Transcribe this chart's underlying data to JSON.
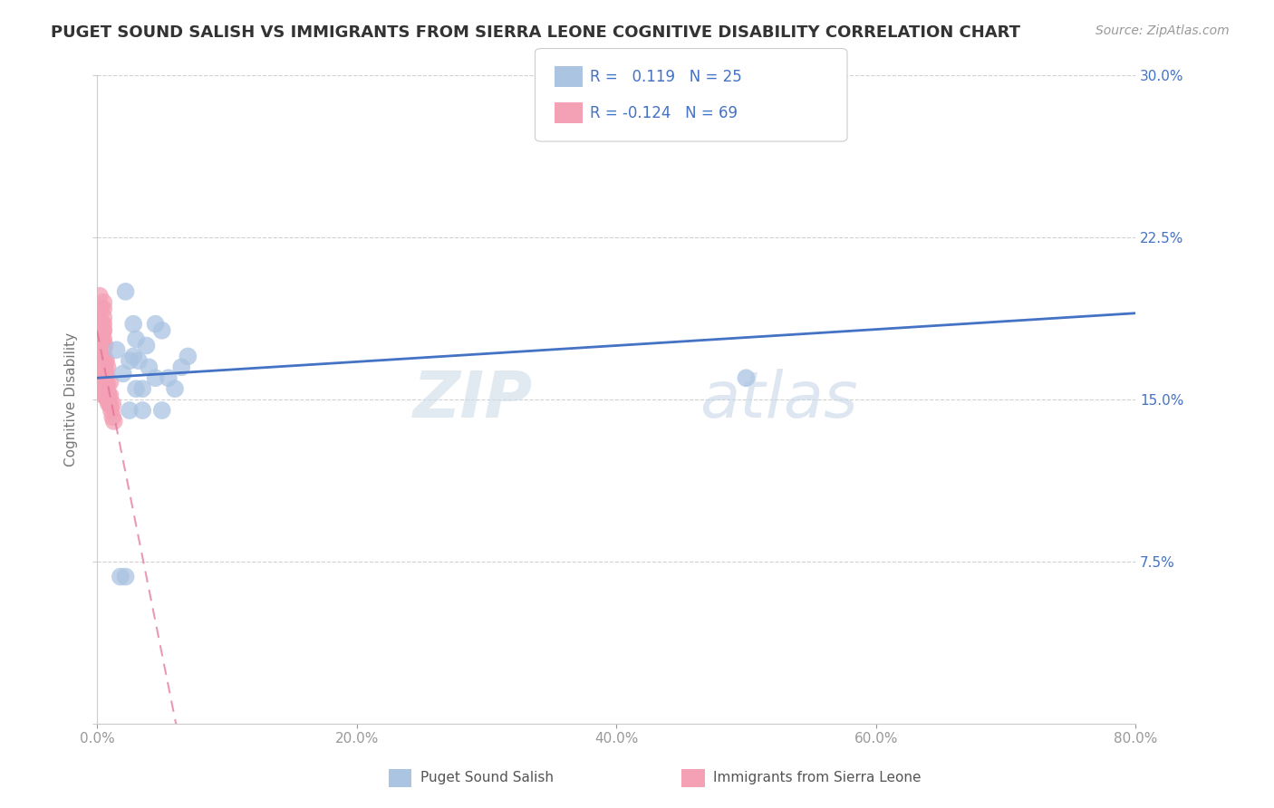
{
  "title": "PUGET SOUND SALISH VS IMMIGRANTS FROM SIERRA LEONE COGNITIVE DISABILITY CORRELATION CHART",
  "source": "Source: ZipAtlas.com",
  "ylabel": "Cognitive Disability",
  "xlim": [
    0.0,
    0.8
  ],
  "ylim": [
    0.0,
    0.3
  ],
  "xticks": [
    0.0,
    0.2,
    0.4,
    0.6,
    0.8
  ],
  "yticks": [
    0.0,
    0.075,
    0.15,
    0.225,
    0.3
  ],
  "xticklabels": [
    "0.0%",
    "20.0%",
    "40.0%",
    "60.0%",
    "80.0%"
  ],
  "yticklabels_left": [
    "",
    "",
    "",
    "",
    ""
  ],
  "yticklabels_right": [
    "",
    "7.5%",
    "15.0%",
    "22.5%",
    "30.0%"
  ],
  "blue_color": "#aac4e2",
  "pink_color": "#f4a0b5",
  "blue_line_color": "#4472c4",
  "pink_line_color": "#e07090",
  "R_blue": 0.119,
  "N_blue": 25,
  "R_pink": -0.124,
  "N_pink": 69,
  "legend_label_blue": "Puget Sound Salish",
  "legend_label_pink": "Immigrants from Sierra Leone",
  "background_color": "#ffffff",
  "grid_color": "#cccccc",
  "blue_scatter_x": [
    0.015,
    0.022,
    0.028,
    0.032,
    0.038,
    0.045,
    0.05,
    0.055,
    0.06,
    0.065,
    0.07,
    0.03,
    0.04,
    0.05,
    0.035,
    0.045,
    0.02,
    0.025,
    0.03,
    0.5,
    0.025,
    0.035,
    0.018,
    0.022,
    0.028
  ],
  "blue_scatter_y": [
    0.173,
    0.2,
    0.185,
    0.168,
    0.175,
    0.185,
    0.182,
    0.16,
    0.155,
    0.165,
    0.17,
    0.178,
    0.165,
    0.145,
    0.155,
    0.16,
    0.162,
    0.168,
    0.155,
    0.16,
    0.145,
    0.145,
    0.068,
    0.068,
    0.17
  ],
  "pink_scatter_x": [
    0.002,
    0.002,
    0.002,
    0.002,
    0.002,
    0.002,
    0.002,
    0.002,
    0.003,
    0.003,
    0.003,
    0.003,
    0.003,
    0.003,
    0.003,
    0.003,
    0.003,
    0.003,
    0.004,
    0.004,
    0.004,
    0.004,
    0.004,
    0.004,
    0.004,
    0.004,
    0.005,
    0.005,
    0.005,
    0.005,
    0.005,
    0.005,
    0.005,
    0.005,
    0.005,
    0.005,
    0.005,
    0.005,
    0.005,
    0.005,
    0.006,
    0.006,
    0.006,
    0.006,
    0.006,
    0.006,
    0.007,
    0.007,
    0.007,
    0.007,
    0.008,
    0.008,
    0.008,
    0.009,
    0.009,
    0.01,
    0.01,
    0.011,
    0.012,
    0.013,
    0.002,
    0.003,
    0.004,
    0.005,
    0.006,
    0.007,
    0.008,
    0.01,
    0.012
  ],
  "pink_scatter_y": [
    0.155,
    0.16,
    0.163,
    0.167,
    0.17,
    0.173,
    0.178,
    0.182,
    0.155,
    0.158,
    0.162,
    0.165,
    0.168,
    0.172,
    0.175,
    0.178,
    0.182,
    0.185,
    0.155,
    0.158,
    0.162,
    0.165,
    0.168,
    0.172,
    0.175,
    0.178,
    0.152,
    0.155,
    0.158,
    0.162,
    0.165,
    0.168,
    0.172,
    0.175,
    0.178,
    0.182,
    0.185,
    0.188,
    0.192,
    0.195,
    0.152,
    0.155,
    0.158,
    0.162,
    0.165,
    0.168,
    0.152,
    0.155,
    0.158,
    0.162,
    0.15,
    0.153,
    0.157,
    0.148,
    0.152,
    0.148,
    0.152,
    0.145,
    0.142,
    0.14,
    0.198,
    0.192,
    0.185,
    0.182,
    0.175,
    0.168,
    0.165,
    0.158,
    0.148
  ],
  "watermark_text": "ZIP",
  "watermark_text2": "atlas",
  "title_fontsize": 13,
  "tick_fontsize": 11,
  "label_fontsize": 11,
  "source_fontsize": 10
}
